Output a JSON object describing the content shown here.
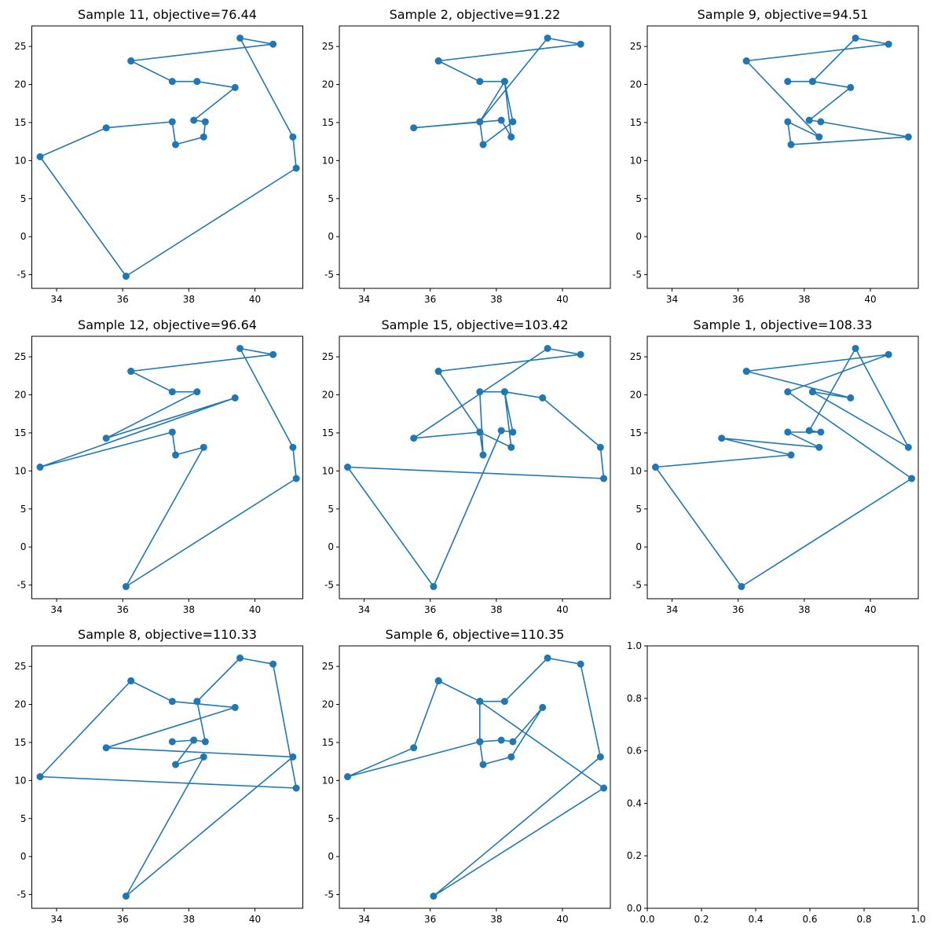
{
  "figure": {
    "line_color": "#1f77b4",
    "marker_color": "#1f77b4"
  },
  "chart_data": [
    {
      "type": "line",
      "title": "Sample 11, objective=76.44",
      "xlim": [
        33.25,
        41.45
      ],
      "ylim": [
        -6.8,
        27.7
      ],
      "xticks": [
        "34",
        "36",
        "38",
        "40"
      ],
      "yticks": [
        "-5",
        "0",
        "5",
        "10",
        "15",
        "20",
        "25"
      ],
      "x": [
        36.25,
        37.5,
        38.25,
        39.4,
        38.15,
        38.5,
        38.45,
        37.6,
        37.5,
        35.5,
        33.5,
        36.1,
        41.25,
        41.15,
        39.55,
        40.55,
        36.25
      ],
      "y": [
        23.1,
        20.4,
        20.4,
        19.6,
        15.3,
        15.1,
        13.1,
        12.1,
        15.1,
        14.3,
        10.5,
        -5.2,
        9.0,
        13.1,
        26.1,
        25.3,
        23.1
      ]
    },
    {
      "type": "line",
      "title": "Sample 2, objective=91.22",
      "xlim": [
        33.25,
        41.45
      ],
      "ylim": [
        -6.8,
        27.7
      ],
      "xticks": [
        "34",
        "36",
        "38",
        "40"
      ],
      "yticks": [
        "-5",
        "0",
        "5",
        "10",
        "15",
        "20",
        "25"
      ],
      "x": [
        36.25,
        37.5,
        38.25,
        38.5,
        37.6,
        37.5,
        35.5,
        38.15,
        38.45,
        38.25,
        37.5,
        39.55,
        40.55,
        36.25
      ],
      "y": [
        23.1,
        20.4,
        20.4,
        15.1,
        12.1,
        15.1,
        14.3,
        15.3,
        13.1,
        20.4,
        15.1,
        26.1,
        25.3,
        23.1
      ]
    },
    {
      "type": "line",
      "title": "Sample 9, objective=94.51",
      "xlim": [
        33.25,
        41.45
      ],
      "ylim": [
        -6.8,
        27.7
      ],
      "xticks": [
        "34",
        "36",
        "38",
        "40"
      ],
      "yticks": [
        "-5",
        "0",
        "5",
        "10",
        "15",
        "20",
        "25"
      ],
      "x": [
        36.25,
        38.45,
        37.5,
        37.6,
        41.15,
        38.5,
        38.15,
        39.4,
        38.25,
        37.5,
        38.25,
        39.55,
        40.55,
        36.25
      ],
      "y": [
        23.1,
        13.1,
        15.1,
        12.1,
        13.1,
        15.1,
        15.3,
        19.6,
        20.4,
        20.4,
        20.4,
        26.1,
        25.3,
        23.1
      ]
    },
    {
      "type": "line",
      "title": "Sample 12, objective=96.64",
      "xlim": [
        33.25,
        41.45
      ],
      "ylim": [
        -6.8,
        27.7
      ],
      "xticks": [
        "34",
        "36",
        "38",
        "40"
      ],
      "yticks": [
        "-5",
        "0",
        "5",
        "10",
        "15",
        "20",
        "25"
      ],
      "x": [
        36.25,
        40.55,
        39.55,
        41.15,
        41.25,
        36.1,
        38.45,
        37.6,
        37.5,
        33.5,
        39.4,
        35.5,
        38.25,
        37.5,
        36.25
      ],
      "y": [
        23.1,
        25.3,
        26.1,
        13.1,
        9.0,
        -5.2,
        13.1,
        12.1,
        15.1,
        10.5,
        19.6,
        14.3,
        20.4,
        20.4,
        23.1
      ]
    },
    {
      "type": "line",
      "title": "Sample 15, objective=103.42",
      "xlim": [
        33.25,
        41.45
      ],
      "ylim": [
        -6.8,
        27.7
      ],
      "xticks": [
        "34",
        "36",
        "38",
        "40"
      ],
      "yticks": [
        "-5",
        "0",
        "5",
        "10",
        "15",
        "20",
        "25"
      ],
      "x": [
        36.25,
        40.55,
        39.55,
        35.5,
        37.5,
        37.6,
        37.5,
        38.25,
        38.5,
        38.15,
        36.1,
        33.5,
        41.25,
        41.15,
        39.4,
        38.25,
        38.45,
        37.5,
        36.25
      ],
      "y": [
        23.1,
        25.3,
        26.1,
        14.3,
        15.1,
        12.1,
        20.4,
        20.4,
        15.1,
        15.3,
        -5.2,
        10.5,
        9.0,
        13.1,
        19.6,
        20.4,
        13.1,
        15.1,
        23.1
      ]
    },
    {
      "type": "line",
      "title": "Sample 1, objective=108.33",
      "xlim": [
        33.25,
        41.45
      ],
      "ylim": [
        -6.8,
        27.7
      ],
      "xticks": [
        "34",
        "36",
        "38",
        "40"
      ],
      "yticks": [
        "-5",
        "0",
        "5",
        "10",
        "15",
        "20",
        "25"
      ],
      "x": [
        36.25,
        39.4,
        38.25,
        41.15,
        39.55,
        38.15,
        38.5,
        37.5,
        38.45,
        35.5,
        37.6,
        33.5,
        36.1,
        41.25,
        37.5,
        40.55,
        36.25
      ],
      "y": [
        23.1,
        19.6,
        20.4,
        13.1,
        26.1,
        15.3,
        15.1,
        15.1,
        13.1,
        14.3,
        12.1,
        10.5,
        -5.2,
        9.0,
        20.4,
        25.3,
        23.1
      ]
    },
    {
      "type": "line",
      "title": "Sample 8, objective=110.33",
      "xlim": [
        33.25,
        41.45
      ],
      "ylim": [
        -6.8,
        27.7
      ],
      "xticks": [
        "34",
        "36",
        "38",
        "40"
      ],
      "yticks": [
        "-5",
        "0",
        "5",
        "10",
        "15",
        "20",
        "25"
      ],
      "x": [
        36.25,
        37.5,
        39.4,
        35.5,
        41.15,
        36.1,
        38.45,
        37.6,
        38.15,
        37.5,
        38.15,
        38.5,
        38.25,
        39.55,
        40.55,
        41.25,
        33.5,
        36.25
      ],
      "y": [
        23.1,
        20.4,
        19.6,
        14.3,
        13.1,
        -5.2,
        13.1,
        12.1,
        15.3,
        15.1,
        15.3,
        15.1,
        20.4,
        26.1,
        25.3,
        9.0,
        10.5,
        23.1
      ]
    },
    {
      "type": "line",
      "title": "Sample 6, objective=110.35",
      "xlim": [
        33.25,
        41.45
      ],
      "ylim": [
        -6.8,
        27.7
      ],
      "xticks": [
        "34",
        "36",
        "38",
        "40"
      ],
      "yticks": [
        "-5",
        "0",
        "5",
        "10",
        "15",
        "20",
        "25"
      ],
      "x": [
        36.25,
        37.5,
        38.25,
        39.55,
        40.55,
        41.15,
        36.1,
        41.25,
        37.5,
        37.5,
        37.6,
        38.45,
        39.4,
        38.5,
        38.15,
        37.5,
        33.5,
        35.5,
        36.25
      ],
      "y": [
        23.1,
        20.4,
        20.4,
        26.1,
        25.3,
        13.1,
        -5.2,
        9.0,
        20.4,
        15.1,
        12.1,
        13.1,
        19.6,
        15.1,
        15.3,
        15.1,
        10.5,
        14.3,
        23.1
      ]
    },
    {
      "type": "line",
      "title": "",
      "xlim": [
        0,
        1
      ],
      "ylim": [
        0,
        1
      ],
      "xticks": [
        "0.0",
        "0.2",
        "0.4",
        "0.6",
        "0.8",
        "1.0"
      ],
      "yticks": [
        "0.0",
        "0.2",
        "0.4",
        "0.6",
        "0.8",
        "1.0"
      ],
      "x": [],
      "y": []
    }
  ]
}
